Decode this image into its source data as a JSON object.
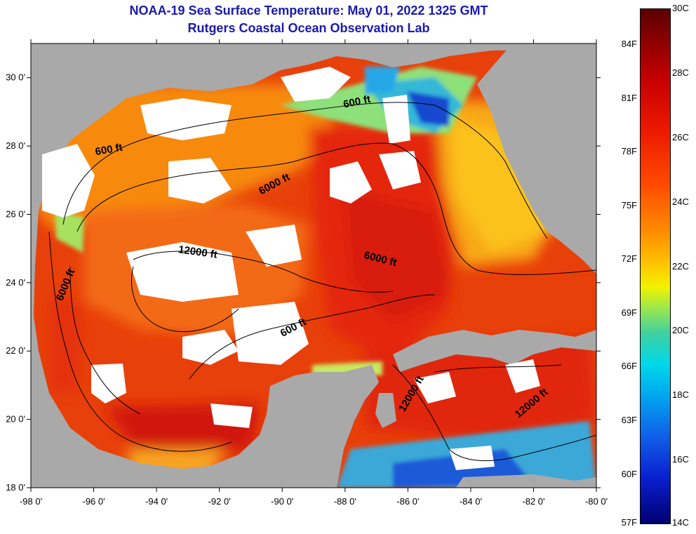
{
  "header": {
    "title": "NOAA-19 Sea Surface Temperature:  May 01, 2022 1325 GMT",
    "subtitle": "Rutgers Coastal Ocean Observation Lab"
  },
  "map": {
    "lon_range": [
      -98,
      -80
    ],
    "lat_range": [
      18,
      31
    ],
    "x_ticks": [
      "-98 0'",
      "-96 0'",
      "-94 0'",
      "-92 0'",
      "-90 0'",
      "-88 0'",
      "-86 0'",
      "-84 0'",
      "-82 0'",
      "-80 0'"
    ],
    "x_tick_values": [
      -98,
      -96,
      -94,
      -92,
      -90,
      -88,
      -86,
      -84,
      -82,
      -80
    ],
    "y_ticks": [
      "30 0'",
      "28 0'",
      "26 0'",
      "24 0'",
      "22 0'",
      "20 0'",
      "18 0'"
    ],
    "y_tick_values": [
      30,
      28,
      26,
      24,
      22,
      20,
      18
    ],
    "contour_labels": [
      {
        "text": "600 ft",
        "lon": -87.6,
        "lat": 29.2,
        "rot": -12
      },
      {
        "text": "600 ft",
        "lon": -95.5,
        "lat": 27.8,
        "rot": -10
      },
      {
        "text": "6000 ft",
        "lon": -90.2,
        "lat": 26.8,
        "rot": -28
      },
      {
        "text": "12000 ft",
        "lon": -92.7,
        "lat": 24.8,
        "rot": 8
      },
      {
        "text": "6000 ft",
        "lon": -86.9,
        "lat": 24.6,
        "rot": 14
      },
      {
        "text": "6000 ft",
        "lon": -96.8,
        "lat": 23.9,
        "rot": -68
      },
      {
        "text": "600 ft",
        "lon": -89.6,
        "lat": 22.6,
        "rot": -28
      },
      {
        "text": "12000 ft",
        "lon": -85.8,
        "lat": 20.7,
        "rot": -60
      },
      {
        "text": "12000 ft",
        "lon": -82.0,
        "lat": 20.4,
        "rot": -40
      }
    ],
    "colors": {
      "land": "#a9a9a9",
      "cloud": "#ffffff",
      "contour": "#000000"
    }
  },
  "colorbar": {
    "min_c": 14,
    "max_c": 30,
    "celsius_labels": [
      {
        "text": "30C",
        "c": 30
      },
      {
        "text": "28C",
        "c": 28
      },
      {
        "text": "26C",
        "c": 26
      },
      {
        "text": "24C",
        "c": 24
      },
      {
        "text": "22C",
        "c": 22
      },
      {
        "text": "20C",
        "c": 20
      },
      {
        "text": "18C",
        "c": 18
      },
      {
        "text": "16C",
        "c": 16
      },
      {
        "text": "14C",
        "c": 14
      }
    ],
    "fahrenheit_labels": [
      {
        "text": "84F",
        "f": 84
      },
      {
        "text": "81F",
        "f": 81
      },
      {
        "text": "78F",
        "f": 78
      },
      {
        "text": "75F",
        "f": 75
      },
      {
        "text": "72F",
        "f": 72
      },
      {
        "text": "69F",
        "f": 69
      },
      {
        "text": "66F",
        "f": 66
      },
      {
        "text": "63F",
        "f": 63
      },
      {
        "text": "60F",
        "f": 60
      },
      {
        "text": "57F",
        "f": 57
      }
    ]
  }
}
